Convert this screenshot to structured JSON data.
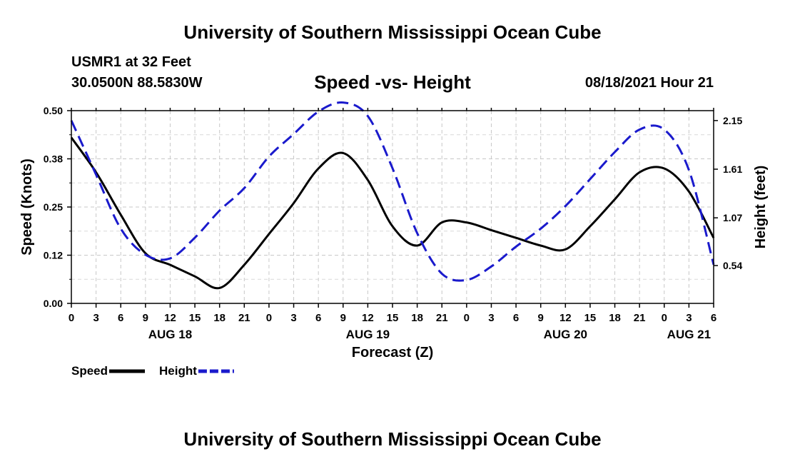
{
  "header": {
    "title": "University of Southern Mississippi Ocean Cube",
    "station": "USMR1 at 32 Feet",
    "coords": "30.0500N  88.5830W",
    "subtitle": "Speed -vs- Height",
    "datestamp": "08/18/2021 Hour 21"
  },
  "footer": {
    "title": "University of Southern Mississippi Ocean Cube"
  },
  "chart_data": {
    "type": "line",
    "xlabel": "Forecast (Z)",
    "ylabel_left": "Speed (Knots)",
    "ylabel_right": "Height (feet)",
    "x_range_hours": [
      0,
      78
    ],
    "ylim_left": [
      0,
      0.5
    ],
    "ylim_right": [
      0.12,
      2.26
    ],
    "grid": true,
    "x_tick_labels": [
      "0",
      "3",
      "6",
      "9",
      "12",
      "15",
      "18",
      "21",
      "0",
      "3",
      "6",
      "9",
      "12",
      "15",
      "18",
      "21",
      "0",
      "3",
      "6",
      "9",
      "12",
      "15",
      "18",
      "21",
      "0",
      "3",
      "6"
    ],
    "date_labels": [
      {
        "label": "AUG 18",
        "hour": 12
      },
      {
        "label": "AUG 19",
        "hour": 36
      },
      {
        "label": "AUG 20",
        "hour": 60
      },
      {
        "label": "AUG 21",
        "hour": 75
      }
    ],
    "y_left_ticks": [
      "0.00",
      "0.12",
      "0.25",
      "0.38",
      "0.50"
    ],
    "y_right_ticks": [
      {
        "label": "0.54",
        "value": 0.54
      },
      {
        "label": "1.07",
        "value": 1.07
      },
      {
        "label": "1.61",
        "value": 1.61
      },
      {
        "label": "2.15",
        "value": 2.15
      }
    ],
    "series": [
      {
        "name": "Speed",
        "axis": "left",
        "color": "#000000",
        "style": "solid",
        "x": [
          0,
          3,
          6,
          9,
          12,
          15,
          18,
          21,
          24,
          27,
          30,
          33,
          36,
          39,
          42,
          45,
          48,
          51,
          54,
          57,
          60,
          63,
          66,
          69,
          72,
          75,
          78
        ],
        "y": [
          0.43,
          0.34,
          0.23,
          0.13,
          0.1,
          0.07,
          0.04,
          0.1,
          0.18,
          0.26,
          0.35,
          0.39,
          0.32,
          0.2,
          0.15,
          0.21,
          0.21,
          0.19,
          0.17,
          0.15,
          0.14,
          0.2,
          0.27,
          0.34,
          0.35,
          0.29,
          0.17
        ]
      },
      {
        "name": "Height",
        "axis": "right",
        "color": "#1a1acc",
        "style": "dashed",
        "x": [
          0,
          3,
          6,
          9,
          12,
          15,
          18,
          21,
          24,
          27,
          30,
          33,
          36,
          39,
          42,
          45,
          48,
          51,
          54,
          57,
          60,
          63,
          66,
          69,
          72,
          75,
          78
        ],
        "y": [
          2.15,
          1.55,
          0.95,
          0.66,
          0.62,
          0.85,
          1.15,
          1.4,
          1.75,
          2.0,
          2.25,
          2.35,
          2.2,
          1.62,
          0.9,
          0.45,
          0.38,
          0.53,
          0.75,
          0.95,
          1.2,
          1.5,
          1.8,
          2.05,
          2.05,
          1.6,
          0.55
        ]
      }
    ],
    "legend": [
      {
        "label": "Speed",
        "color": "#000000",
        "style": "solid"
      },
      {
        "label": "Height",
        "color": "#1a1acc",
        "style": "dashed"
      }
    ]
  }
}
